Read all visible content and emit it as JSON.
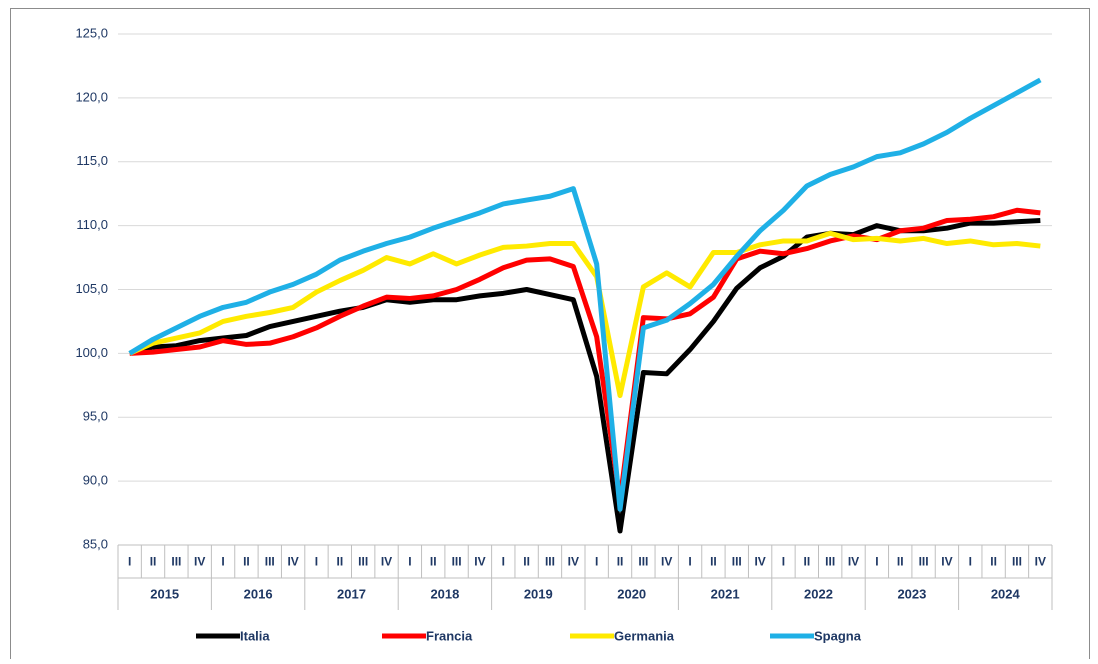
{
  "chart_data": {
    "type": "line",
    "categories": [
      "I",
      "II",
      "III",
      "IV",
      "I",
      "II",
      "III",
      "IV",
      "I",
      "II",
      "III",
      "IV",
      "I",
      "II",
      "III",
      "IV",
      "I",
      "II",
      "III",
      "IV",
      "I",
      "II",
      "III",
      "IV",
      "I",
      "II",
      "III",
      "IV",
      "I",
      "II",
      "III",
      "IV",
      "I",
      "II",
      "III",
      "IV",
      "I",
      "II",
      "III",
      "IV"
    ],
    "years": [
      "2015",
      "2016",
      "2017",
      "2018",
      "2019",
      "2020",
      "2021",
      "2022",
      "2023",
      "2024"
    ],
    "ylim": [
      85,
      125
    ],
    "yticks": [
      {
        "value": 85,
        "label": "85,0"
      },
      {
        "value": 90,
        "label": "90,0"
      },
      {
        "value": 95,
        "label": "95,0"
      },
      {
        "value": 100,
        "label": "100,0"
      },
      {
        "value": 105,
        "label": "105,0"
      },
      {
        "value": 110,
        "label": "110,0"
      },
      {
        "value": 115,
        "label": "115,0"
      },
      {
        "value": 120,
        "label": "120,0"
      },
      {
        "value": 125,
        "label": "125,0"
      }
    ],
    "grid": true,
    "legend": "bottom",
    "series": [
      {
        "name": "Italia",
        "color": "#000000",
        "values": [
          100.0,
          100.5,
          100.6,
          101.0,
          101.2,
          101.4,
          102.1,
          102.5,
          102.9,
          103.3,
          103.6,
          104.2,
          104.0,
          104.2,
          104.2,
          104.5,
          104.7,
          105.0,
          104.6,
          104.2,
          98.2,
          86.1,
          98.5,
          98.4,
          100.3,
          102.5,
          105.1,
          106.7,
          107.6,
          109.1,
          109.4,
          109.3,
          110.0,
          109.6,
          109.6,
          109.8,
          110.2,
          110.2,
          110.3,
          110.4
        ]
      },
      {
        "name": "Francia",
        "color": "#ff0000",
        "values": [
          100.0,
          100.1,
          100.3,
          100.5,
          101.0,
          100.7,
          100.8,
          101.3,
          102.0,
          102.9,
          103.7,
          104.4,
          104.3,
          104.5,
          105.0,
          105.8,
          106.7,
          107.3,
          107.4,
          106.8,
          101.3,
          88.5,
          102.8,
          102.7,
          103.1,
          104.4,
          107.4,
          108.0,
          107.8,
          108.2,
          108.8,
          109.2,
          108.9,
          109.6,
          109.8,
          110.4,
          110.5,
          110.7,
          111.2,
          111.0
        ]
      },
      {
        "name": "Germania",
        "color": "#ffea00",
        "values": [
          100.0,
          100.8,
          101.2,
          101.6,
          102.5,
          102.9,
          103.2,
          103.6,
          104.8,
          105.7,
          106.5,
          107.5,
          107.0,
          107.8,
          107.0,
          107.7,
          108.3,
          108.4,
          108.6,
          108.6,
          106.0,
          96.7,
          105.2,
          106.3,
          105.2,
          107.9,
          107.9,
          108.5,
          108.8,
          108.8,
          109.4,
          108.9,
          109.0,
          108.8,
          109.0,
          108.6,
          108.8,
          108.5,
          108.6,
          108.4
        ]
      },
      {
        "name": "Spagna",
        "color": "#1fb0e6",
        "values": [
          100.0,
          101.1,
          102.0,
          102.9,
          103.6,
          104.0,
          104.8,
          105.4,
          106.2,
          107.3,
          108.0,
          108.6,
          109.1,
          109.8,
          110.4,
          111.0,
          111.7,
          112.0,
          112.3,
          112.9,
          107.0,
          87.8,
          102.0,
          102.6,
          103.9,
          105.4,
          107.6,
          109.6,
          111.2,
          113.1,
          114.0,
          114.6,
          115.4,
          115.7,
          116.4,
          117.3,
          118.4,
          119.4,
          120.4,
          121.4
        ]
      }
    ]
  }
}
